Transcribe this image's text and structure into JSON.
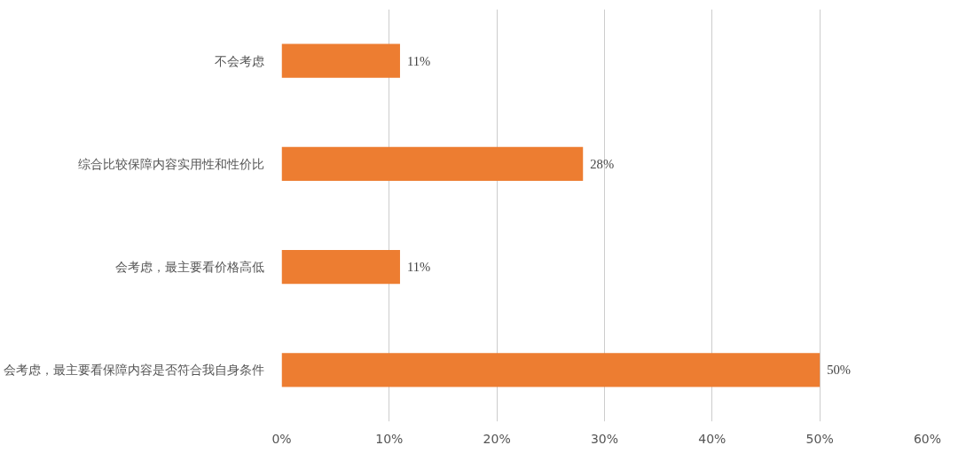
{
  "chart_data": {
    "type": "bar",
    "orientation": "horizontal",
    "categories": [
      "不会考虑",
      "综合比较保障内容实用性和性价比",
      "会考虑，最主要看价格高低",
      "会考虑，最主要看保障内容是否符合我自身条件"
    ],
    "values": [
      11,
      28,
      11,
      50
    ],
    "value_labels": [
      "11%",
      "28%",
      "11%",
      "50%"
    ],
    "color": "#ed7d31",
    "xlim": [
      0,
      60
    ],
    "xticks": [
      {
        "value": 0,
        "label": "0%"
      },
      {
        "value": 10,
        "label": "10%"
      },
      {
        "value": 20,
        "label": "20%"
      },
      {
        "value": 30,
        "label": "30%"
      },
      {
        "value": 40,
        "label": "40%"
      },
      {
        "value": 50,
        "label": "50%"
      },
      {
        "value": 60,
        "label": "60%"
      }
    ],
    "grid": "x"
  }
}
